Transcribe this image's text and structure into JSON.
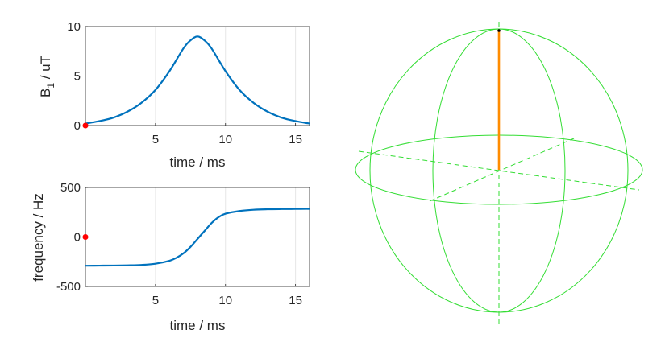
{
  "chart_data": [
    {
      "type": "line",
      "xlabel": "time / ms",
      "ylabel_main": "B",
      "ylabel_sub": "1",
      "ylabel_rest": " / uT",
      "xlim": [
        0,
        16
      ],
      "ylim": [
        0,
        10
      ],
      "xticks": [
        5,
        10,
        15
      ],
      "yticks": [
        0,
        5,
        10
      ],
      "grid": true,
      "line_color": "#0072BD",
      "marker_color": "#FF0000",
      "series": [
        {
          "x": [
            0,
            1,
            2,
            3,
            4,
            5,
            6,
            7,
            7.5,
            8,
            8.5,
            9,
            10,
            11,
            12,
            13,
            14,
            15,
            16
          ],
          "values": [
            0.2,
            0.45,
            0.8,
            1.4,
            2.3,
            3.6,
            5.5,
            7.8,
            8.6,
            9.0,
            8.6,
            7.8,
            5.5,
            3.6,
            2.3,
            1.4,
            0.8,
            0.45,
            0.2
          ]
        }
      ],
      "marker": {
        "x": 0,
        "y": 0
      }
    },
    {
      "type": "line",
      "xlabel": "time / ms",
      "ylabel": "frequency / Hz",
      "xlim": [
        0,
        16
      ],
      "ylim": [
        -500,
        500
      ],
      "xticks": [
        5,
        10,
        15
      ],
      "yticks": [
        -500,
        0,
        500
      ],
      "grid": true,
      "line_color": "#0072BD",
      "marker_color": "#FF0000",
      "series": [
        {
          "x": [
            0,
            1,
            2,
            3,
            4,
            5,
            6,
            6.5,
            7,
            7.5,
            8,
            8.5,
            9,
            9.5,
            10,
            11,
            12,
            13,
            14,
            15,
            16
          ],
          "values": [
            -290,
            -289,
            -288,
            -286,
            -282,
            -270,
            -240,
            -210,
            -165,
            -100,
            -20,
            60,
            140,
            200,
            235,
            262,
            275,
            280,
            282,
            283,
            284
          ]
        }
      ],
      "marker": {
        "x": 0,
        "y": 0
      }
    }
  ],
  "sphere": {
    "wire_color": "#33DD33",
    "vector_color": "#FF8C00",
    "tip_color": "#000000"
  }
}
